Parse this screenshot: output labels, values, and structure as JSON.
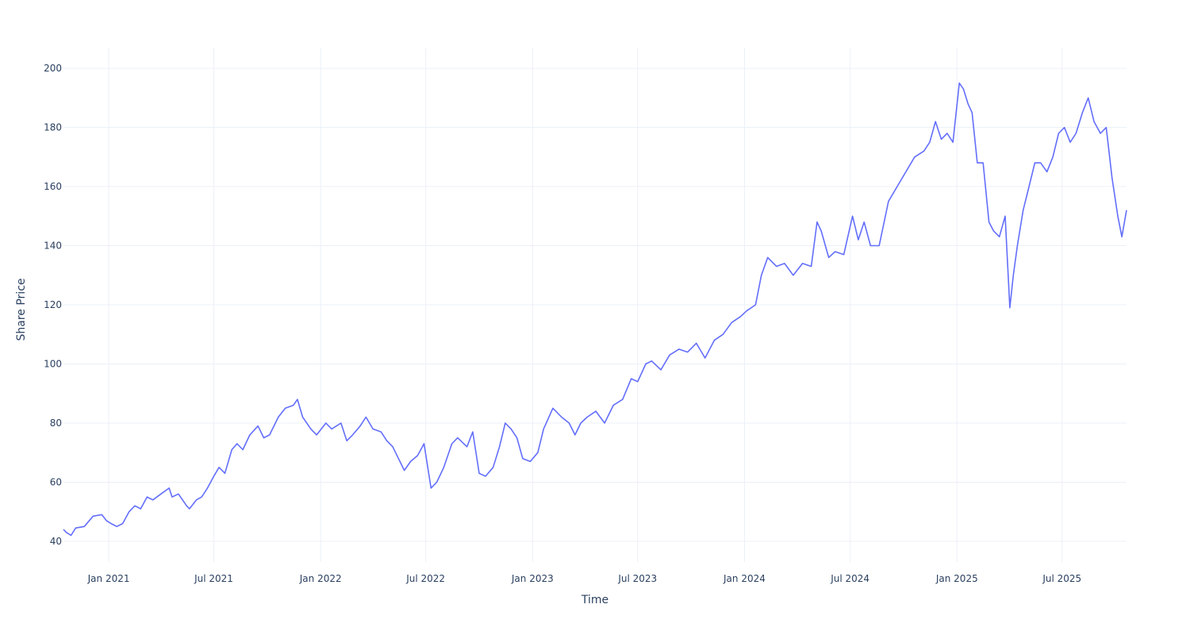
{
  "chart_data": {
    "type": "line",
    "xlabel": "Time",
    "ylabel": "Share Price",
    "x_range": [
      "2020-10-15",
      "2025-10-20"
    ],
    "ylim": [
      33,
      207
    ],
    "x_ticks": [
      {
        "date": "2021-01-01",
        "label": "Jan 2021"
      },
      {
        "date": "2021-07-01",
        "label": "Jul 2021"
      },
      {
        "date": "2022-01-01",
        "label": "Jan 2022"
      },
      {
        "date": "2022-07-01",
        "label": "Jul 2022"
      },
      {
        "date": "2023-01-01",
        "label": "Jan 2023"
      },
      {
        "date": "2023-07-01",
        "label": "Jul 2023"
      },
      {
        "date": "2024-01-01",
        "label": "Jan 2024"
      },
      {
        "date": "2024-07-01",
        "label": "Jul 2024"
      },
      {
        "date": "2025-01-01",
        "label": "Jan 2025"
      },
      {
        "date": "2025-07-01",
        "label": "Jul 2025"
      }
    ],
    "y_ticks": [
      40,
      60,
      80,
      100,
      120,
      140,
      160,
      180,
      200
    ],
    "grid": true,
    "line_color": "#636efa",
    "series": [
      {
        "x": [
          "2020-10-15",
          "2020-10-20",
          "2020-10-28",
          "2020-11-05",
          "2020-11-20",
          "2020-12-05",
          "2020-12-20",
          "2020-12-28",
          "2021-01-05",
          "2021-01-15",
          "2021-01-25",
          "2021-02-05",
          "2021-02-15",
          "2021-02-25",
          "2021-03-08",
          "2021-03-18",
          "2021-04-01",
          "2021-04-15",
          "2021-04-20",
          "2021-05-01",
          "2021-05-15",
          "2021-05-20",
          "2021-06-01",
          "2021-06-10",
          "2021-06-20",
          "2021-07-01",
          "2021-07-10",
          "2021-07-20",
          "2021-08-01",
          "2021-08-10",
          "2021-08-20",
          "2021-09-01",
          "2021-09-15",
          "2021-09-25",
          "2021-10-05",
          "2021-10-20",
          "2021-11-01",
          "2021-11-15",
          "2021-11-22",
          "2021-12-01",
          "2021-12-15",
          "2021-12-25",
          "2022-01-10",
          "2022-01-20",
          "2022-02-05",
          "2022-02-15",
          "2022-02-25",
          "2022-03-10",
          "2022-03-20",
          "2022-04-01",
          "2022-04-15",
          "2022-04-25",
          "2022-05-05",
          "2022-05-15",
          "2022-05-25",
          "2022-06-05",
          "2022-06-17",
          "2022-06-28",
          "2022-07-10",
          "2022-07-20",
          "2022-08-01",
          "2022-08-15",
          "2022-08-25",
          "2022-09-10",
          "2022-09-20",
          "2022-10-01",
          "2022-10-12",
          "2022-10-25",
          "2022-11-05",
          "2022-11-15",
          "2022-11-25",
          "2022-12-05",
          "2022-12-15",
          "2022-12-28",
          "2023-01-10",
          "2023-01-20",
          "2023-02-05",
          "2023-02-20",
          "2023-03-05",
          "2023-03-15",
          "2023-03-25",
          "2023-04-05",
          "2023-04-20",
          "2023-05-05",
          "2023-05-20",
          "2023-06-05",
          "2023-06-20",
          "2023-07-01",
          "2023-07-15",
          "2023-07-25",
          "2023-08-10",
          "2023-08-25",
          "2023-09-10",
          "2023-09-25",
          "2023-10-10",
          "2023-10-25",
          "2023-11-10",
          "2023-11-25",
          "2023-12-10",
          "2023-12-25",
          "2024-01-05",
          "2024-01-20",
          "2024-01-30",
          "2024-02-10",
          "2024-02-25",
          "2024-03-10",
          "2024-03-25",
          "2024-04-10",
          "2024-04-25",
          "2024-05-05",
          "2024-05-12",
          "2024-05-25",
          "2024-06-05",
          "2024-06-20",
          "2024-07-05",
          "2024-07-15",
          "2024-07-25",
          "2024-08-05",
          "2024-08-20",
          "2024-09-05",
          "2024-09-20",
          "2024-10-05",
          "2024-10-20",
          "2024-11-05",
          "2024-11-15",
          "2024-11-25",
          "2024-12-05",
          "2024-12-15",
          "2024-12-25",
          "2025-01-05",
          "2025-01-12",
          "2025-01-20",
          "2025-01-27",
          "2025-02-05",
          "2025-02-15",
          "2025-02-25",
          "2025-03-05",
          "2025-03-15",
          "2025-03-25",
          "2025-04-02",
          "2025-04-08",
          "2025-04-15",
          "2025-04-25",
          "2025-05-05",
          "2025-05-15",
          "2025-05-25",
          "2025-06-05",
          "2025-06-15",
          "2025-06-25",
          "2025-07-05",
          "2025-07-15",
          "2025-07-25",
          "2025-08-05",
          "2025-08-15",
          "2025-08-25",
          "2025-09-05",
          "2025-09-15",
          "2025-09-25",
          "2025-10-05",
          "2025-10-12",
          "2025-10-20"
        ],
        "y": [
          44,
          43,
          42,
          44.5,
          45,
          48.5,
          49,
          47,
          46,
          45,
          46,
          50,
          52,
          51,
          55,
          54,
          56,
          58,
          55,
          56,
          52,
          51,
          54,
          55,
          58,
          62,
          65,
          63,
          71,
          73,
          71,
          76,
          79,
          75,
          76,
          82,
          85,
          86,
          88,
          82,
          78,
          76,
          80,
          78,
          80,
          74,
          76,
          79,
          82,
          78,
          77,
          74,
          72,
          68,
          64,
          67,
          69,
          73,
          58,
          60,
          65,
          73,
          75,
          72,
          77,
          63,
          62,
          65,
          72,
          80,
          78,
          75,
          68,
          67,
          70,
          78,
          85,
          82,
          80,
          76,
          80,
          82,
          84,
          80,
          86,
          88,
          95,
          94,
          100,
          101,
          98,
          103,
          105,
          104,
          107,
          102,
          108,
          110,
          114,
          116,
          118,
          120,
          130,
          136,
          133,
          134,
          130,
          134,
          133,
          148,
          145,
          136,
          138,
          137,
          150,
          142,
          148,
          140,
          140,
          155,
          160,
          165,
          170,
          172,
          175,
          182,
          176,
          178,
          175,
          195,
          193,
          188,
          185,
          168,
          168,
          148,
          145,
          143,
          150,
          119,
          130,
          140,
          152,
          160,
          168,
          168,
          165,
          170,
          178,
          180,
          175,
          178,
          185,
          190,
          182,
          178,
          180,
          163,
          150,
          143,
          152
        ]
      }
    ]
  }
}
